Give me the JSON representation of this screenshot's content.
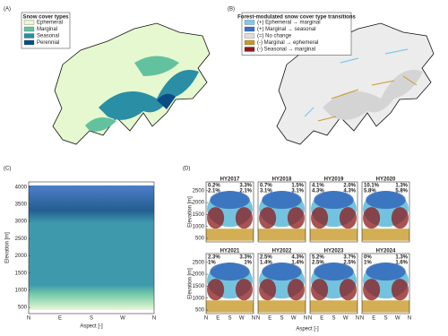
{
  "maps": [
    {
      "label": "(A)",
      "legend_title": "Snow cover types",
      "legend": [
        {
          "name": "Ephemeral",
          "color": "#e6f8cf"
        },
        {
          "name": "Marginal",
          "color": "#62c29f"
        },
        {
          "name": "Seasonal",
          "color": "#2a8ea4"
        },
        {
          "name": "Perennial",
          "color": "#0b4c84"
        }
      ]
    },
    {
      "label": "(B)",
      "legend_title": "Forest-modulated snow cover type transitions",
      "legend": [
        {
          "name": "(+) Ephemeral → marginal",
          "color": "#7fc9e6"
        },
        {
          "name": "(+) Marginal → seasonal",
          "color": "#3a6fc4"
        },
        {
          "name": "(=) No change",
          "color": "#dedede"
        },
        {
          "name": "(-) Marginal → ephemeral",
          "color": "#c89a2a"
        },
        {
          "name": "(-) Seasonal → marginal",
          "color": "#8b1a1a"
        }
      ]
    }
  ],
  "panel_d": {
    "label": "(D)",
    "xlabel": "Aspect [-]"
  },
  "chart_data": [
    {
      "type": "scatter",
      "label": "(C)",
      "xlabel": "Aspect [-]",
      "ylabel": "Elevation [m]",
      "categories": [
        "N",
        "E",
        "S",
        "W",
        "N"
      ],
      "ylim": [
        320,
        4150
      ],
      "yticks": [
        500,
        1000,
        1500,
        2000,
        2500,
        3000,
        3500,
        4000
      ]
    },
    {
      "type": "scatter",
      "title": "HY2017",
      "ylabel": "Elevation [m]",
      "ylim": [
        350,
        2870
      ],
      "yticks": [
        500,
        1000,
        1500,
        2000,
        2500
      ],
      "series": [
        {
          "color": "#5bb8d8",
          "values": [
            0.2
          ],
          "value_labels": [
            "0.2%"
          ]
        },
        {
          "color": "#2f63b8",
          "values": [
            2.1
          ],
          "value_labels": [
            "2.1%"
          ]
        },
        {
          "color": "#c89a2a",
          "values": [
            3.3
          ],
          "value_labels": [
            "3.3%"
          ]
        },
        {
          "color": "#8b1a1a",
          "values": [
            2.1
          ],
          "value_labels": [
            "2.1%"
          ]
        }
      ]
    },
    {
      "type": "scatter",
      "title": "HY2018",
      "ylim": [
        350,
        2870
      ],
      "series": [
        {
          "color": "#5bb8d8",
          "values": [
            0.7
          ],
          "value_labels": [
            "0.7%"
          ]
        },
        {
          "color": "#2f63b8",
          "values": [
            3.1
          ],
          "value_labels": [
            "3.1%"
          ]
        },
        {
          "color": "#c89a2a",
          "values": [
            1.5
          ],
          "value_labels": [
            "1.5%"
          ]
        },
        {
          "color": "#8b1a1a",
          "values": [
            3.1
          ],
          "value_labels": [
            "3.1%"
          ]
        }
      ]
    },
    {
      "type": "scatter",
      "title": "HY2019",
      "ylim": [
        350,
        2870
      ],
      "series": [
        {
          "color": "#5bb8d8",
          "values": [
            4.1
          ],
          "value_labels": [
            "4.1%"
          ]
        },
        {
          "color": "#2f63b8",
          "values": [
            4.3
          ],
          "value_labels": [
            "4.3%"
          ]
        },
        {
          "color": "#c89a2a",
          "values": [
            2.0
          ],
          "value_labels": [
            "2.0%"
          ]
        },
        {
          "color": "#8b1a1a",
          "values": [
            4.3
          ],
          "value_labels": [
            "4.3%"
          ]
        }
      ]
    },
    {
      "type": "scatter",
      "title": "HY2020",
      "ylim": [
        350,
        2870
      ],
      "series": [
        {
          "color": "#5bb8d8",
          "values": [
            10.1
          ],
          "value_labels": [
            "10.1%"
          ]
        },
        {
          "color": "#2f63b8",
          "values": [
            5.8
          ],
          "value_labels": [
            "5.8%"
          ]
        },
        {
          "color": "#c89a2a",
          "values": [
            1.3
          ],
          "value_labels": [
            "1.3%"
          ]
        },
        {
          "color": "#8b1a1a",
          "values": [
            5.8
          ],
          "value_labels": [
            "5.8%"
          ]
        }
      ]
    },
    {
      "type": "scatter",
      "title": "HY2021",
      "ylabel": "Elevation [m]",
      "ylim": [
        350,
        2870
      ],
      "yticks": [
        500,
        1000,
        1500,
        2000,
        2500
      ],
      "categories": [
        "N",
        "E",
        "S",
        "W",
        "N"
      ],
      "series": [
        {
          "color": "#5bb8d8",
          "values": [
            2.3
          ],
          "value_labels": [
            "2.3%"
          ]
        },
        {
          "color": "#2f63b8",
          "values": [
            1
          ],
          "value_labels": [
            "1%"
          ]
        },
        {
          "color": "#c89a2a",
          "values": [
            3.3
          ],
          "value_labels": [
            "3.3%"
          ]
        },
        {
          "color": "#8b1a1a",
          "values": [
            1
          ],
          "value_labels": [
            "1%"
          ]
        }
      ]
    },
    {
      "type": "scatter",
      "title": "HY2022",
      "ylim": [
        350,
        2870
      ],
      "categories": [
        "N",
        "E",
        "S",
        "W",
        "N"
      ],
      "series": [
        {
          "color": "#5bb8d8",
          "values": [
            2.5
          ],
          "value_labels": [
            "2.5%"
          ]
        },
        {
          "color": "#2f63b8",
          "values": [
            1.4
          ],
          "value_labels": [
            "1.4%"
          ]
        },
        {
          "color": "#c89a2a",
          "values": [
            4.3
          ],
          "value_labels": [
            "4.3%"
          ]
        },
        {
          "color": "#8b1a1a",
          "values": [
            1.4
          ],
          "value_labels": [
            "1.4%"
          ]
        }
      ]
    },
    {
      "type": "scatter",
      "title": "HY2023",
      "ylim": [
        350,
        2870
      ],
      "categories": [
        "N",
        "E",
        "S",
        "W",
        "N"
      ],
      "series": [
        {
          "color": "#5bb8d8",
          "values": [
            5.2
          ],
          "value_labels": [
            "5.2%"
          ]
        },
        {
          "color": "#2f63b8",
          "values": [
            2.5
          ],
          "value_labels": [
            "2.5%"
          ]
        },
        {
          "color": "#c89a2a",
          "values": [
            3.7
          ],
          "value_labels": [
            "3.7%"
          ]
        },
        {
          "color": "#8b1a1a",
          "values": [
            2.5
          ],
          "value_labels": [
            "2.5%"
          ]
        }
      ]
    },
    {
      "type": "scatter",
      "title": "HY2024",
      "ylim": [
        350,
        2870
      ],
      "categories": [
        "N",
        "E",
        "S",
        "W",
        "N"
      ],
      "series": [
        {
          "color": "#5bb8d8",
          "values": [
            0
          ],
          "value_labels": [
            "0%"
          ]
        },
        {
          "color": "#2f63b8",
          "values": [
            1
          ],
          "value_labels": [
            "1%"
          ]
        },
        {
          "color": "#c89a2a",
          "values": [
            1.3
          ],
          "value_labels": [
            "1.3%"
          ]
        },
        {
          "color": "#8b1a1a",
          "values": [
            1.6
          ],
          "value_labels": [
            "1.6%"
          ]
        }
      ]
    }
  ]
}
